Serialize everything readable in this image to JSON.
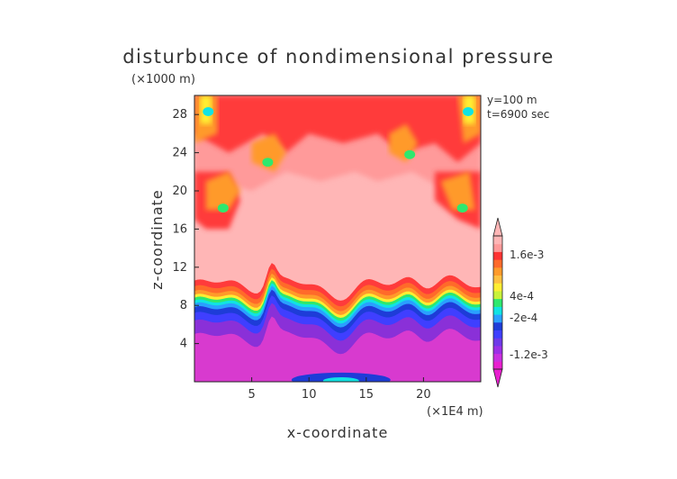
{
  "chart_data": {
    "type": "heatmap",
    "title": "disturbunce of nondimensional pressure",
    "z_unit": "(×1000 m)",
    "x_unit": "(×1E4 m)",
    "xlabel": "x-coordinate",
    "ylabel": "z-coordinate",
    "info": [
      "y=100 m",
      "t=6900 sec"
    ],
    "xlim": [
      0,
      25
    ],
    "ylim": [
      0,
      30
    ],
    "x_ticks": [
      5,
      10,
      15,
      20
    ],
    "y_ticks": [
      4,
      8,
      12,
      16,
      20,
      24,
      28
    ],
    "colorbar": {
      "labels": [
        "1.6e-3",
        "4e-4",
        "-2e-4",
        "-1.2e-3"
      ],
      "colors": [
        "#e81ecf",
        "#c92fe0",
        "#9b2fe6",
        "#6e39e8",
        "#3f3fff",
        "#1e3cd8",
        "#2aa0ff",
        "#10e3e3",
        "#2ee86e",
        "#c8f23a",
        "#ffee33",
        "#ffc040",
        "#ff9a2a",
        "#ff6a2a",
        "#ff3333",
        "#ff9a9a",
        "#ffb6b6"
      ]
    }
  }
}
